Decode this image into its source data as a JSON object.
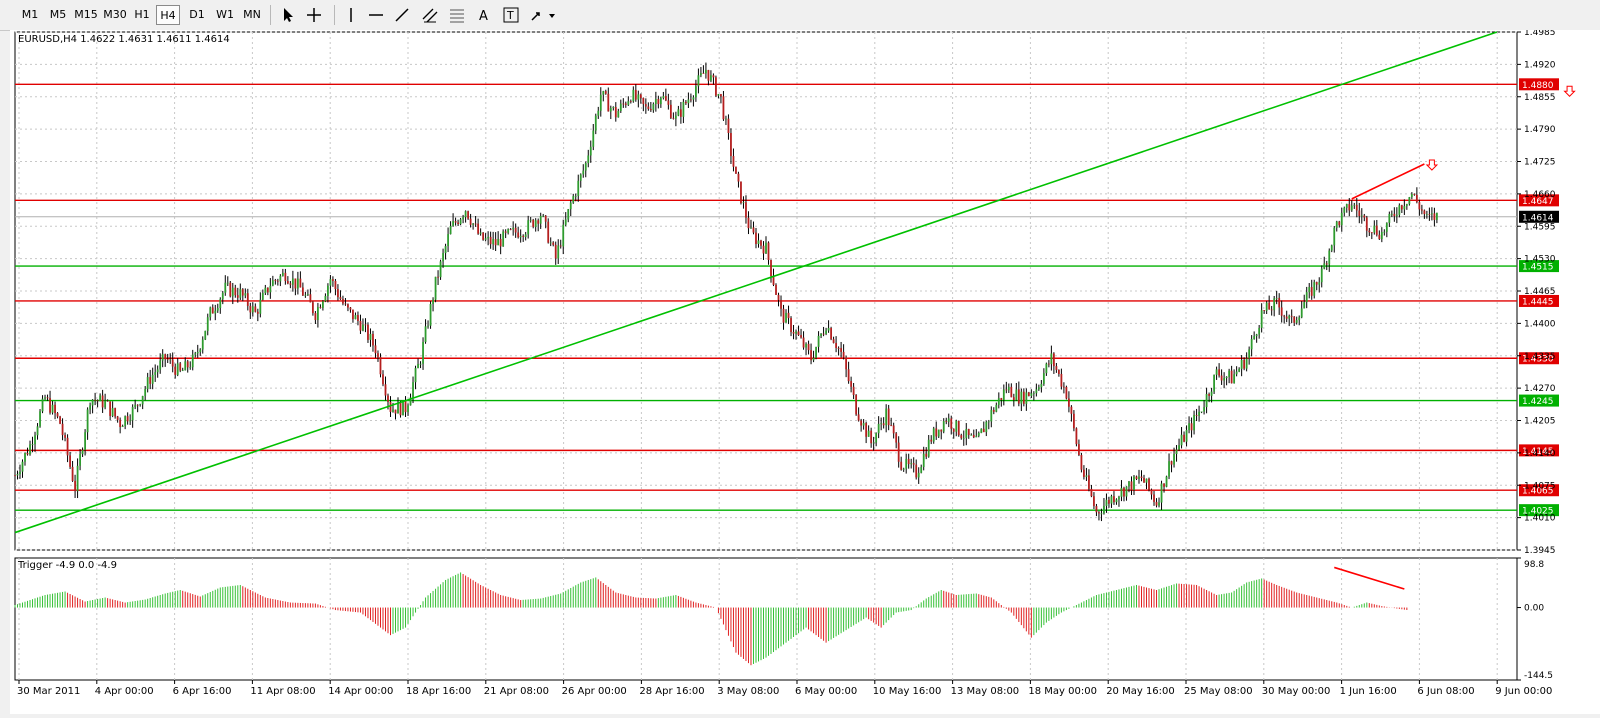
{
  "toolbar": {
    "timeframes": [
      "M1",
      "M5",
      "M15",
      "M30",
      "H1",
      "H4",
      "D1",
      "W1",
      "MN"
    ],
    "active_timeframe": "H4"
  },
  "main_panel": {
    "header": "EURUSD,H4  1.4622 1.4631 1.4611 1.4614",
    "current_price_label": "1.4614"
  },
  "indicator_panel": {
    "header": "Trigger -4.9 0.0 -4.9",
    "scale_labels": [
      "98.8",
      "0.00",
      "-144.5"
    ]
  },
  "chart_data": {
    "type": "candlestick",
    "symbol": "EURUSD",
    "timeframe": "H4",
    "price_axis_ticks": [
      "1.4985",
      "1.4920",
      "1.4855",
      "1.4790",
      "1.4725",
      "1.4660",
      "1.4595",
      "1.4530",
      "1.4465",
      "1.4400",
      "1.4335",
      "1.4270",
      "1.4205",
      "1.4140",
      "1.4075",
      "1.4010",
      "1.3945"
    ],
    "ylim": [
      1.3945,
      1.4985
    ],
    "time_axis_labels": [
      "30 Mar 2011",
      "4 Apr 00:00",
      "6 Apr 16:00",
      "11 Apr 08:00",
      "14 Apr 00:00",
      "18 Apr 16:00",
      "21 Apr 08:00",
      "26 Apr 00:00",
      "28 Apr 16:00",
      "3 May 08:00",
      "6 May 00:00",
      "10 May 16:00",
      "13 May 08:00",
      "18 May 00:00",
      "20 May 16:00",
      "25 May 08:00",
      "30 May 00:00",
      "1 Jun 16:00",
      "6 Jun 08:00",
      "9 Jun 00:00"
    ],
    "horizontal_levels": [
      {
        "label": "1.4880",
        "value": 1.488,
        "color": "#e00000"
      },
      {
        "label": "1.4647",
        "value": 1.4647,
        "color": "#e00000"
      },
      {
        "label": "1.4515",
        "value": 1.4515,
        "color": "#00b000"
      },
      {
        "label": "1.4445",
        "value": 1.4445,
        "color": "#e00000"
      },
      {
        "label": "1.4330",
        "value": 1.433,
        "color": "#e00000"
      },
      {
        "label": "1.4245",
        "value": 1.4245,
        "color": "#00b000"
      },
      {
        "label": "1.4145",
        "value": 1.4145,
        "color": "#e00000"
      },
      {
        "label": "1.4065",
        "value": 1.4065,
        "color": "#e00000"
      },
      {
        "label": "1.4025",
        "value": 1.4025,
        "color": "#00b000"
      }
    ],
    "close_path": [
      [
        0,
        1.4095
      ],
      [
        6,
        1.4155
      ],
      [
        12,
        1.425
      ],
      [
        18,
        1.42
      ],
      [
        24,
        1.407
      ],
      [
        30,
        1.425
      ],
      [
        36,
        1.424
      ],
      [
        42,
        1.42
      ],
      [
        48,
        1.423
      ],
      [
        54,
        1.429
      ],
      [
        60,
        1.433
      ],
      [
        66,
        1.43
      ],
      [
        72,
        1.433
      ],
      [
        78,
        1.442
      ],
      [
        84,
        1.447
      ],
      [
        90,
        1.446
      ],
      [
        96,
        1.442
      ],
      [
        102,
        1.448
      ],
      [
        108,
        1.45
      ],
      [
        114,
        1.447
      ],
      [
        120,
        1.442
      ],
      [
        126,
        1.449
      ],
      [
        132,
        1.443
      ],
      [
        138,
        1.44
      ],
      [
        144,
        1.435
      ],
      [
        150,
        1.423
      ],
      [
        156,
        1.423
      ],
      [
        162,
        1.433
      ],
      [
        168,
        1.448
      ],
      [
        174,
        1.459
      ],
      [
        180,
        1.463
      ],
      [
        186,
        1.457
      ],
      [
        192,
        1.456
      ],
      [
        198,
        1.458
      ],
      [
        204,
        1.459
      ],
      [
        210,
        1.462
      ],
      [
        216,
        1.453
      ],
      [
        222,
        1.464
      ],
      [
        228,
        1.472
      ],
      [
        234,
        1.486
      ],
      [
        240,
        1.482
      ],
      [
        246,
        1.486
      ],
      [
        252,
        1.483
      ],
      [
        258,
        1.486
      ],
      [
        264,
        1.481
      ],
      [
        270,
        1.486
      ],
      [
        276,
        1.491
      ],
      [
        282,
        1.485
      ],
      [
        288,
        1.469
      ],
      [
        294,
        1.458
      ],
      [
        300,
        1.455
      ],
      [
        306,
        1.442
      ],
      [
        312,
        1.438
      ],
      [
        318,
        1.433
      ],
      [
        324,
        1.44
      ],
      [
        330,
        1.434
      ],
      [
        336,
        1.423
      ],
      [
        342,
        1.416
      ],
      [
        348,
        1.422
      ],
      [
        354,
        1.412
      ],
      [
        360,
        1.41
      ],
      [
        366,
        1.417
      ],
      [
        372,
        1.421
      ],
      [
        378,
        1.418
      ],
      [
        384,
        1.416
      ],
      [
        390,
        1.422
      ],
      [
        396,
        1.427
      ],
      [
        402,
        1.425
      ],
      [
        408,
        1.427
      ],
      [
        414,
        1.433
      ],
      [
        420,
        1.426
      ],
      [
        426,
        1.411
      ],
      [
        432,
        1.402
      ],
      [
        438,
        1.405
      ],
      [
        444,
        1.407
      ],
      [
        450,
        1.409
      ],
      [
        456,
        1.404
      ],
      [
        462,
        1.413
      ],
      [
        468,
        1.418
      ],
      [
        474,
        1.423
      ],
      [
        480,
        1.43
      ],
      [
        486,
        1.429
      ],
      [
        492,
        1.433
      ],
      [
        498,
        1.442
      ],
      [
        504,
        1.444
      ],
      [
        510,
        1.44
      ],
      [
        516,
        1.445
      ],
      [
        522,
        1.45
      ],
      [
        528,
        1.46
      ],
      [
        534,
        1.464
      ],
      [
        540,
        1.46
      ],
      [
        546,
        1.458
      ],
      [
        552,
        1.463
      ],
      [
        558,
        1.466
      ],
      [
        564,
        1.461
      ],
      [
        568,
        1.4614
      ]
    ],
    "trendlines": [
      {
        "color": "#00c000",
        "from": [
          0,
          1.398
        ],
        "to": [
          592,
          1.4985
        ]
      },
      {
        "color": "#ff0000",
        "from": [
          534,
          1.465
        ],
        "to": [
          563,
          1.472
        ]
      }
    ],
    "arrows": [
      {
        "color": "#ff0000",
        "at": [
          566,
          1.4718
        ]
      },
      {
        "color": "#ff0000",
        "at": [
          621,
          1.4866
        ]
      }
    ],
    "indicator": {
      "name": "Trigger",
      "ylim": [
        -144.5,
        98.8
      ],
      "path": [
        [
          0,
          5
        ],
        [
          12,
          25
        ],
        [
          20,
          32
        ],
        [
          28,
          12
        ],
        [
          36,
          20
        ],
        [
          44,
          10
        ],
        [
          52,
          16
        ],
        [
          60,
          28
        ],
        [
          66,
          35
        ],
        [
          74,
          22
        ],
        [
          82,
          40
        ],
        [
          90,
          45
        ],
        [
          100,
          20
        ],
        [
          110,
          10
        ],
        [
          120,
          8
        ],
        [
          128,
          -5
        ],
        [
          138,
          -10
        ],
        [
          150,
          -55
        ],
        [
          156,
          -40
        ],
        [
          164,
          20
        ],
        [
          172,
          55
        ],
        [
          178,
          70
        ],
        [
          186,
          45
        ],
        [
          194,
          25
        ],
        [
          202,
          15
        ],
        [
          210,
          18
        ],
        [
          218,
          28
        ],
        [
          226,
          50
        ],
        [
          232,
          60
        ],
        [
          240,
          30
        ],
        [
          248,
          20
        ],
        [
          256,
          18
        ],
        [
          264,
          25
        ],
        [
          272,
          10
        ],
        [
          280,
          0
        ],
        [
          288,
          -90
        ],
        [
          294,
          -115
        ],
        [
          300,
          -100
        ],
        [
          308,
          -70
        ],
        [
          316,
          -40
        ],
        [
          324,
          -70
        ],
        [
          332,
          -45
        ],
        [
          340,
          -20
        ],
        [
          346,
          -40
        ],
        [
          352,
          -10
        ],
        [
          358,
          -5
        ],
        [
          364,
          18
        ],
        [
          370,
          35
        ],
        [
          376,
          25
        ],
        [
          384,
          28
        ],
        [
          390,
          20
        ],
        [
          398,
          -10
        ],
        [
          406,
          -60
        ],
        [
          412,
          -30
        ],
        [
          418,
          -10
        ],
        [
          424,
          5
        ],
        [
          432,
          25
        ],
        [
          440,
          35
        ],
        [
          448,
          45
        ],
        [
          456,
          35
        ],
        [
          464,
          48
        ],
        [
          472,
          45
        ],
        [
          480,
          25
        ],
        [
          486,
          30
        ],
        [
          492,
          50
        ],
        [
          498,
          58
        ],
        [
          504,
          45
        ],
        [
          512,
          30
        ],
        [
          520,
          20
        ],
        [
          528,
          10
        ],
        [
          534,
          0
        ],
        [
          540,
          10
        ],
        [
          546,
          3
        ],
        [
          552,
          -2
        ],
        [
          556,
          -4.9
        ]
      ],
      "trendline": {
        "color": "#ff0000",
        "from": [
          527,
          80
        ],
        "to": [
          555,
          37
        ]
      }
    }
  }
}
